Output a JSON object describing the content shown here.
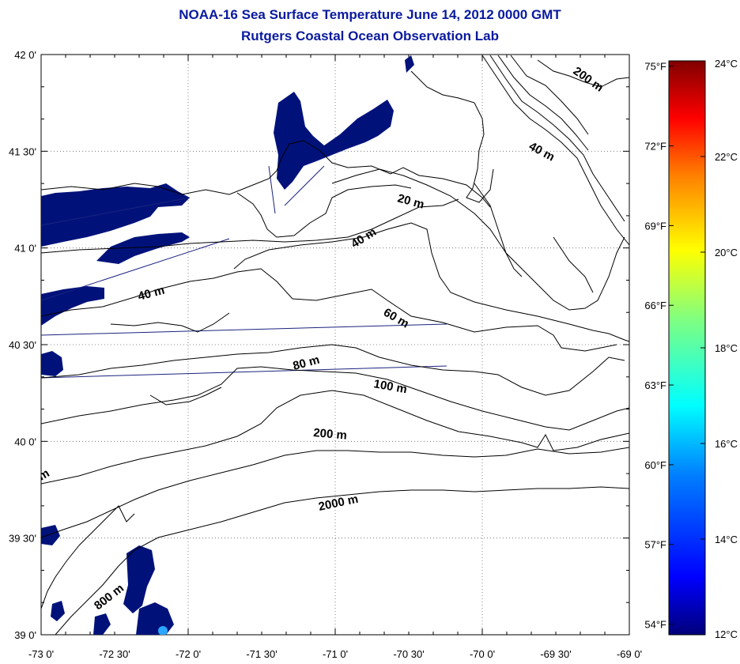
{
  "title": "NOAA-16 Sea Surface Temperature June 14, 2012 0000 GMT",
  "subtitle": "Rutgers Coastal Ocean Observation Lab",
  "map": {
    "lat_labels": [
      {
        "value": 42.0,
        "label": "42 0'"
      },
      {
        "value": 41.5,
        "label": "41 30'"
      },
      {
        "value": 41.0,
        "label": "41 0'"
      },
      {
        "value": 40.5,
        "label": "40 30'"
      },
      {
        "value": 40.0,
        "label": "40 0'"
      },
      {
        "value": 39.5,
        "label": "39 30'"
      },
      {
        "value": 39.0,
        "label": "39 0'"
      }
    ],
    "lon_labels": [
      {
        "value": -73.0,
        "label": "-73 0'"
      },
      {
        "value": -72.5,
        "label": "-72 30'"
      },
      {
        "value": -72.0,
        "label": "-72 0'"
      },
      {
        "value": -71.5,
        "label": "-71 30'"
      },
      {
        "value": -71.0,
        "label": "-71 0'"
      },
      {
        "value": -70.5,
        "label": "-70 30'"
      },
      {
        "value": -70.0,
        "label": "-70 0'"
      },
      {
        "value": -69.5,
        "label": "-69 30'"
      },
      {
        "value": -69.0,
        "label": "-69 0'"
      }
    ],
    "lat_range": [
      39.0,
      42.0
    ],
    "lon_range": [
      -73.0,
      -69.0
    ],
    "grid": true,
    "contour_labels": [
      {
        "label": "200 m"
      },
      {
        "label": "40 m"
      },
      {
        "label": "20 m"
      },
      {
        "label": "40 m"
      },
      {
        "label": "40 m"
      },
      {
        "label": "60 m"
      },
      {
        "label": "80 m"
      },
      {
        "label": "100 m"
      },
      {
        "label": "200 m"
      },
      {
        "label": "2000 m"
      },
      {
        "label": "800 m"
      },
      {
        "label": "m"
      }
    ]
  },
  "colorbar": {
    "celsius": [
      {
        "value": 24,
        "label": "24°C"
      },
      {
        "value": 22,
        "label": "22°C"
      },
      {
        "value": 20,
        "label": "20°C"
      },
      {
        "value": 18,
        "label": "18°C"
      },
      {
        "value": 16,
        "label": "16°C"
      },
      {
        "value": 14,
        "label": "14°C"
      },
      {
        "value": 12,
        "label": "12°C"
      }
    ],
    "fahrenheit": [
      {
        "value": 75,
        "label": "75°F"
      },
      {
        "value": 72,
        "label": "72°F"
      },
      {
        "value": 69,
        "label": "69°F"
      },
      {
        "value": 66,
        "label": "66°F"
      },
      {
        "value": 63,
        "label": "63°F"
      },
      {
        "value": 60,
        "label": "60°F"
      },
      {
        "value": 57,
        "label": "57°F"
      },
      {
        "value": 54,
        "label": "54°F"
      }
    ],
    "range_c": [
      12,
      24
    ],
    "colors": [
      "#00007a",
      "#0000ff",
      "#0080ff",
      "#00ffff",
      "#80ff80",
      "#ffff00",
      "#ff8000",
      "#ff0000",
      "#800000"
    ]
  },
  "colors": {
    "title": "#0a1a9e",
    "land": "#00127a",
    "contour": "#000000",
    "track": "#1a237e"
  }
}
